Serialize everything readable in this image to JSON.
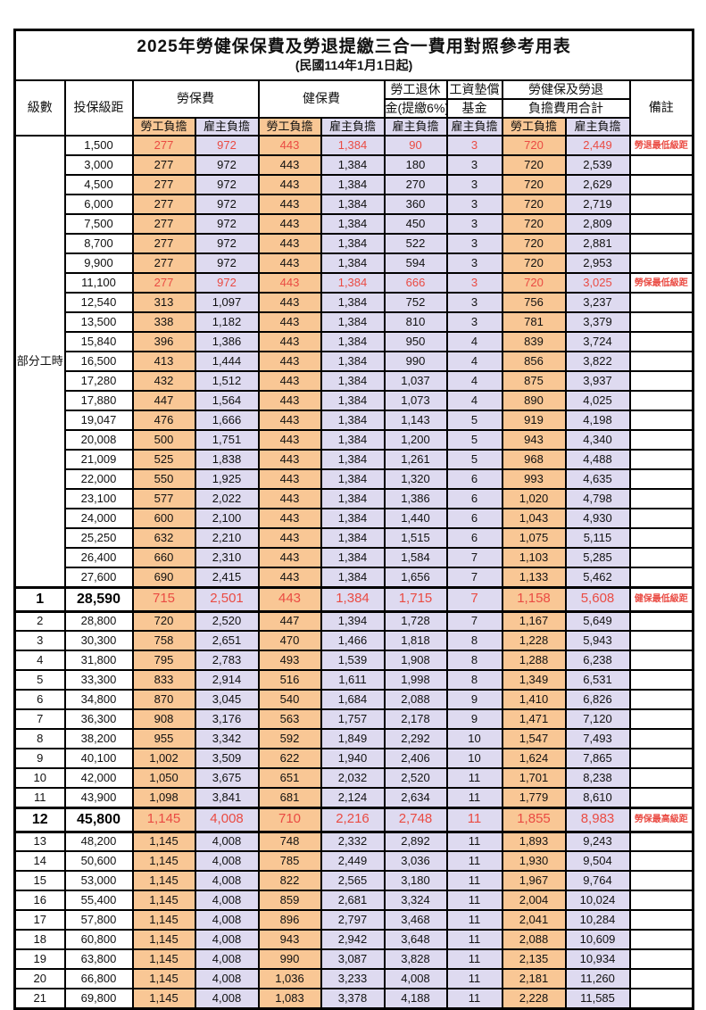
{
  "title": "2025年勞健保保費及勞退提繳三合一費用對照參考用表",
  "subtitle": "(民國114年1月1日起)",
  "header": {
    "level": "級數",
    "salary": "投保級距",
    "labor_fee": "勞保費",
    "health_fee": "健保費",
    "pension_line1": "勞工退休",
    "pension_line2": "金(提繳6%)",
    "wage_fund_line1": "工資墊償",
    "wage_fund_line2": "基金",
    "total_line1": "勞健保及勞退",
    "total_line2": "負擔費用合計",
    "remark": "備註",
    "employee": "勞工負擔",
    "employer": "雇主負擔"
  },
  "part_time_label": "部分工時",
  "part_time_rowspan": 23,
  "colors": {
    "employee_bg": "#F9C795",
    "employer_bg": "#DEDAF0",
    "highlight_red": "#EA4B43",
    "border": "#000000"
  },
  "rows": [
    {
      "lv": "",
      "sa": "1,500",
      "v": [
        "277",
        "972",
        "443",
        "1,384",
        "90",
        "3",
        "720",
        "2,449"
      ],
      "n": "勞退最低級距",
      "r": 1,
      "b": 0
    },
    {
      "lv": "",
      "sa": "3,000",
      "v": [
        "277",
        "972",
        "443",
        "1,384",
        "180",
        "3",
        "720",
        "2,539"
      ],
      "n": "",
      "r": 0,
      "b": 0
    },
    {
      "lv": "",
      "sa": "4,500",
      "v": [
        "277",
        "972",
        "443",
        "1,384",
        "270",
        "3",
        "720",
        "2,629"
      ],
      "n": "",
      "r": 0,
      "b": 0
    },
    {
      "lv": "",
      "sa": "6,000",
      "v": [
        "277",
        "972",
        "443",
        "1,384",
        "360",
        "3",
        "720",
        "2,719"
      ],
      "n": "",
      "r": 0,
      "b": 0
    },
    {
      "lv": "",
      "sa": "7,500",
      "v": [
        "277",
        "972",
        "443",
        "1,384",
        "450",
        "3",
        "720",
        "2,809"
      ],
      "n": "",
      "r": 0,
      "b": 0
    },
    {
      "lv": "",
      "sa": "8,700",
      "v": [
        "277",
        "972",
        "443",
        "1,384",
        "522",
        "3",
        "720",
        "2,881"
      ],
      "n": "",
      "r": 0,
      "b": 0
    },
    {
      "lv": "",
      "sa": "9,900",
      "v": [
        "277",
        "972",
        "443",
        "1,384",
        "594",
        "3",
        "720",
        "2,953"
      ],
      "n": "",
      "r": 0,
      "b": 0
    },
    {
      "lv": "",
      "sa": "11,100",
      "v": [
        "277",
        "972",
        "443",
        "1,384",
        "666",
        "3",
        "720",
        "3,025"
      ],
      "n": "勞保最低級距",
      "r": 1,
      "b": 0
    },
    {
      "lv": "",
      "sa": "12,540",
      "v": [
        "313",
        "1,097",
        "443",
        "1,384",
        "752",
        "3",
        "756",
        "3,237"
      ],
      "n": "",
      "r": 0,
      "b": 0
    },
    {
      "lv": "",
      "sa": "13,500",
      "v": [
        "338",
        "1,182",
        "443",
        "1,384",
        "810",
        "3",
        "781",
        "3,379"
      ],
      "n": "",
      "r": 0,
      "b": 0
    },
    {
      "lv": "",
      "sa": "15,840",
      "v": [
        "396",
        "1,386",
        "443",
        "1,384",
        "950",
        "4",
        "839",
        "3,724"
      ],
      "n": "",
      "r": 0,
      "b": 0
    },
    {
      "lv": "",
      "sa": "16,500",
      "v": [
        "413",
        "1,444",
        "443",
        "1,384",
        "990",
        "4",
        "856",
        "3,822"
      ],
      "n": "",
      "r": 0,
      "b": 0
    },
    {
      "lv": "",
      "sa": "17,280",
      "v": [
        "432",
        "1,512",
        "443",
        "1,384",
        "1,037",
        "4",
        "875",
        "3,937"
      ],
      "n": "",
      "r": 0,
      "b": 0
    },
    {
      "lv": "",
      "sa": "17,880",
      "v": [
        "447",
        "1,564",
        "443",
        "1,384",
        "1,073",
        "4",
        "890",
        "4,025"
      ],
      "n": "",
      "r": 0,
      "b": 0
    },
    {
      "lv": "",
      "sa": "19,047",
      "v": [
        "476",
        "1,666",
        "443",
        "1,384",
        "1,143",
        "5",
        "919",
        "4,198"
      ],
      "n": "",
      "r": 0,
      "b": 0
    },
    {
      "lv": "",
      "sa": "20,008",
      "v": [
        "500",
        "1,751",
        "443",
        "1,384",
        "1,200",
        "5",
        "943",
        "4,340"
      ],
      "n": "",
      "r": 0,
      "b": 0
    },
    {
      "lv": "",
      "sa": "21,009",
      "v": [
        "525",
        "1,838",
        "443",
        "1,384",
        "1,261",
        "5",
        "968",
        "4,488"
      ],
      "n": "",
      "r": 0,
      "b": 0
    },
    {
      "lv": "",
      "sa": "22,000",
      "v": [
        "550",
        "1,925",
        "443",
        "1,384",
        "1,320",
        "6",
        "993",
        "4,635"
      ],
      "n": "",
      "r": 0,
      "b": 0
    },
    {
      "lv": "",
      "sa": "23,100",
      "v": [
        "577",
        "2,022",
        "443",
        "1,384",
        "1,386",
        "6",
        "1,020",
        "4,798"
      ],
      "n": "",
      "r": 0,
      "b": 0
    },
    {
      "lv": "",
      "sa": "24,000",
      "v": [
        "600",
        "2,100",
        "443",
        "1,384",
        "1,440",
        "6",
        "1,043",
        "4,930"
      ],
      "n": "",
      "r": 0,
      "b": 0
    },
    {
      "lv": "",
      "sa": "25,250",
      "v": [
        "632",
        "2,210",
        "443",
        "1,384",
        "1,515",
        "6",
        "1,075",
        "5,115"
      ],
      "n": "",
      "r": 0,
      "b": 0
    },
    {
      "lv": "",
      "sa": "26,400",
      "v": [
        "660",
        "2,310",
        "443",
        "1,384",
        "1,584",
        "7",
        "1,103",
        "5,285"
      ],
      "n": "",
      "r": 0,
      "b": 0
    },
    {
      "lv": "",
      "sa": "27,600",
      "v": [
        "690",
        "2,415",
        "443",
        "1,384",
        "1,656",
        "7",
        "1,133",
        "5,462"
      ],
      "n": "",
      "r": 0,
      "b": 0
    },
    {
      "lv": "1",
      "sa": "28,590",
      "v": [
        "715",
        "2,501",
        "443",
        "1,384",
        "1,715",
        "7",
        "1,158",
        "5,608"
      ],
      "n": "健保最低級距",
      "r": 1,
      "b": 1
    },
    {
      "lv": "2",
      "sa": "28,800",
      "v": [
        "720",
        "2,520",
        "447",
        "1,394",
        "1,728",
        "7",
        "1,167",
        "5,649"
      ],
      "n": "",
      "r": 0,
      "b": 0
    },
    {
      "lv": "3",
      "sa": "30,300",
      "v": [
        "758",
        "2,651",
        "470",
        "1,466",
        "1,818",
        "8",
        "1,228",
        "5,943"
      ],
      "n": "",
      "r": 0,
      "b": 0
    },
    {
      "lv": "4",
      "sa": "31,800",
      "v": [
        "795",
        "2,783",
        "493",
        "1,539",
        "1,908",
        "8",
        "1,288",
        "6,238"
      ],
      "n": "",
      "r": 0,
      "b": 0
    },
    {
      "lv": "5",
      "sa": "33,300",
      "v": [
        "833",
        "2,914",
        "516",
        "1,611",
        "1,998",
        "8",
        "1,349",
        "6,531"
      ],
      "n": "",
      "r": 0,
      "b": 0
    },
    {
      "lv": "6",
      "sa": "34,800",
      "v": [
        "870",
        "3,045",
        "540",
        "1,684",
        "2,088",
        "9",
        "1,410",
        "6,826"
      ],
      "n": "",
      "r": 0,
      "b": 0
    },
    {
      "lv": "7",
      "sa": "36,300",
      "v": [
        "908",
        "3,176",
        "563",
        "1,757",
        "2,178",
        "9",
        "1,471",
        "7,120"
      ],
      "n": "",
      "r": 0,
      "b": 0
    },
    {
      "lv": "8",
      "sa": "38,200",
      "v": [
        "955",
        "3,342",
        "592",
        "1,849",
        "2,292",
        "10",
        "1,547",
        "7,493"
      ],
      "n": "",
      "r": 0,
      "b": 0
    },
    {
      "lv": "9",
      "sa": "40,100",
      "v": [
        "1,002",
        "3,509",
        "622",
        "1,940",
        "2,406",
        "10",
        "1,624",
        "7,865"
      ],
      "n": "",
      "r": 0,
      "b": 0
    },
    {
      "lv": "10",
      "sa": "42,000",
      "v": [
        "1,050",
        "3,675",
        "651",
        "2,032",
        "2,520",
        "11",
        "1,701",
        "8,238"
      ],
      "n": "",
      "r": 0,
      "b": 0
    },
    {
      "lv": "11",
      "sa": "43,900",
      "v": [
        "1,098",
        "3,841",
        "681",
        "2,124",
        "2,634",
        "11",
        "1,779",
        "8,610"
      ],
      "n": "",
      "r": 0,
      "b": 0
    },
    {
      "lv": "12",
      "sa": "45,800",
      "v": [
        "1,145",
        "4,008",
        "710",
        "2,216",
        "2,748",
        "11",
        "1,855",
        "8,983"
      ],
      "n": "勞保最高級距",
      "r": 1,
      "b": 1
    },
    {
      "lv": "13",
      "sa": "48,200",
      "v": [
        "1,145",
        "4,008",
        "748",
        "2,332",
        "2,892",
        "11",
        "1,893",
        "9,243"
      ],
      "n": "",
      "r": 0,
      "b": 0
    },
    {
      "lv": "14",
      "sa": "50,600",
      "v": [
        "1,145",
        "4,008",
        "785",
        "2,449",
        "3,036",
        "11",
        "1,930",
        "9,504"
      ],
      "n": "",
      "r": 0,
      "b": 0
    },
    {
      "lv": "15",
      "sa": "53,000",
      "v": [
        "1,145",
        "4,008",
        "822",
        "2,565",
        "3,180",
        "11",
        "1,967",
        "9,764"
      ],
      "n": "",
      "r": 0,
      "b": 0
    },
    {
      "lv": "16",
      "sa": "55,400",
      "v": [
        "1,145",
        "4,008",
        "859",
        "2,681",
        "3,324",
        "11",
        "2,004",
        "10,024"
      ],
      "n": "",
      "r": 0,
      "b": 0
    },
    {
      "lv": "17",
      "sa": "57,800",
      "v": [
        "1,145",
        "4,008",
        "896",
        "2,797",
        "3,468",
        "11",
        "2,041",
        "10,284"
      ],
      "n": "",
      "r": 0,
      "b": 0
    },
    {
      "lv": "18",
      "sa": "60,800",
      "v": [
        "1,145",
        "4,008",
        "943",
        "2,942",
        "3,648",
        "11",
        "2,088",
        "10,609"
      ],
      "n": "",
      "r": 0,
      "b": 0
    },
    {
      "lv": "19",
      "sa": "63,800",
      "v": [
        "1,145",
        "4,008",
        "990",
        "3,087",
        "3,828",
        "11",
        "2,135",
        "10,934"
      ],
      "n": "",
      "r": 0,
      "b": 0
    },
    {
      "lv": "20",
      "sa": "66,800",
      "v": [
        "1,145",
        "4,008",
        "1,036",
        "3,233",
        "4,008",
        "11",
        "2,181",
        "11,260"
      ],
      "n": "",
      "r": 0,
      "b": 0
    },
    {
      "lv": "21",
      "sa": "69,800",
      "v": [
        "1,145",
        "4,008",
        "1,083",
        "3,378",
        "4,188",
        "11",
        "2,228",
        "11,585"
      ],
      "n": "",
      "r": 0,
      "b": 0
    }
  ]
}
